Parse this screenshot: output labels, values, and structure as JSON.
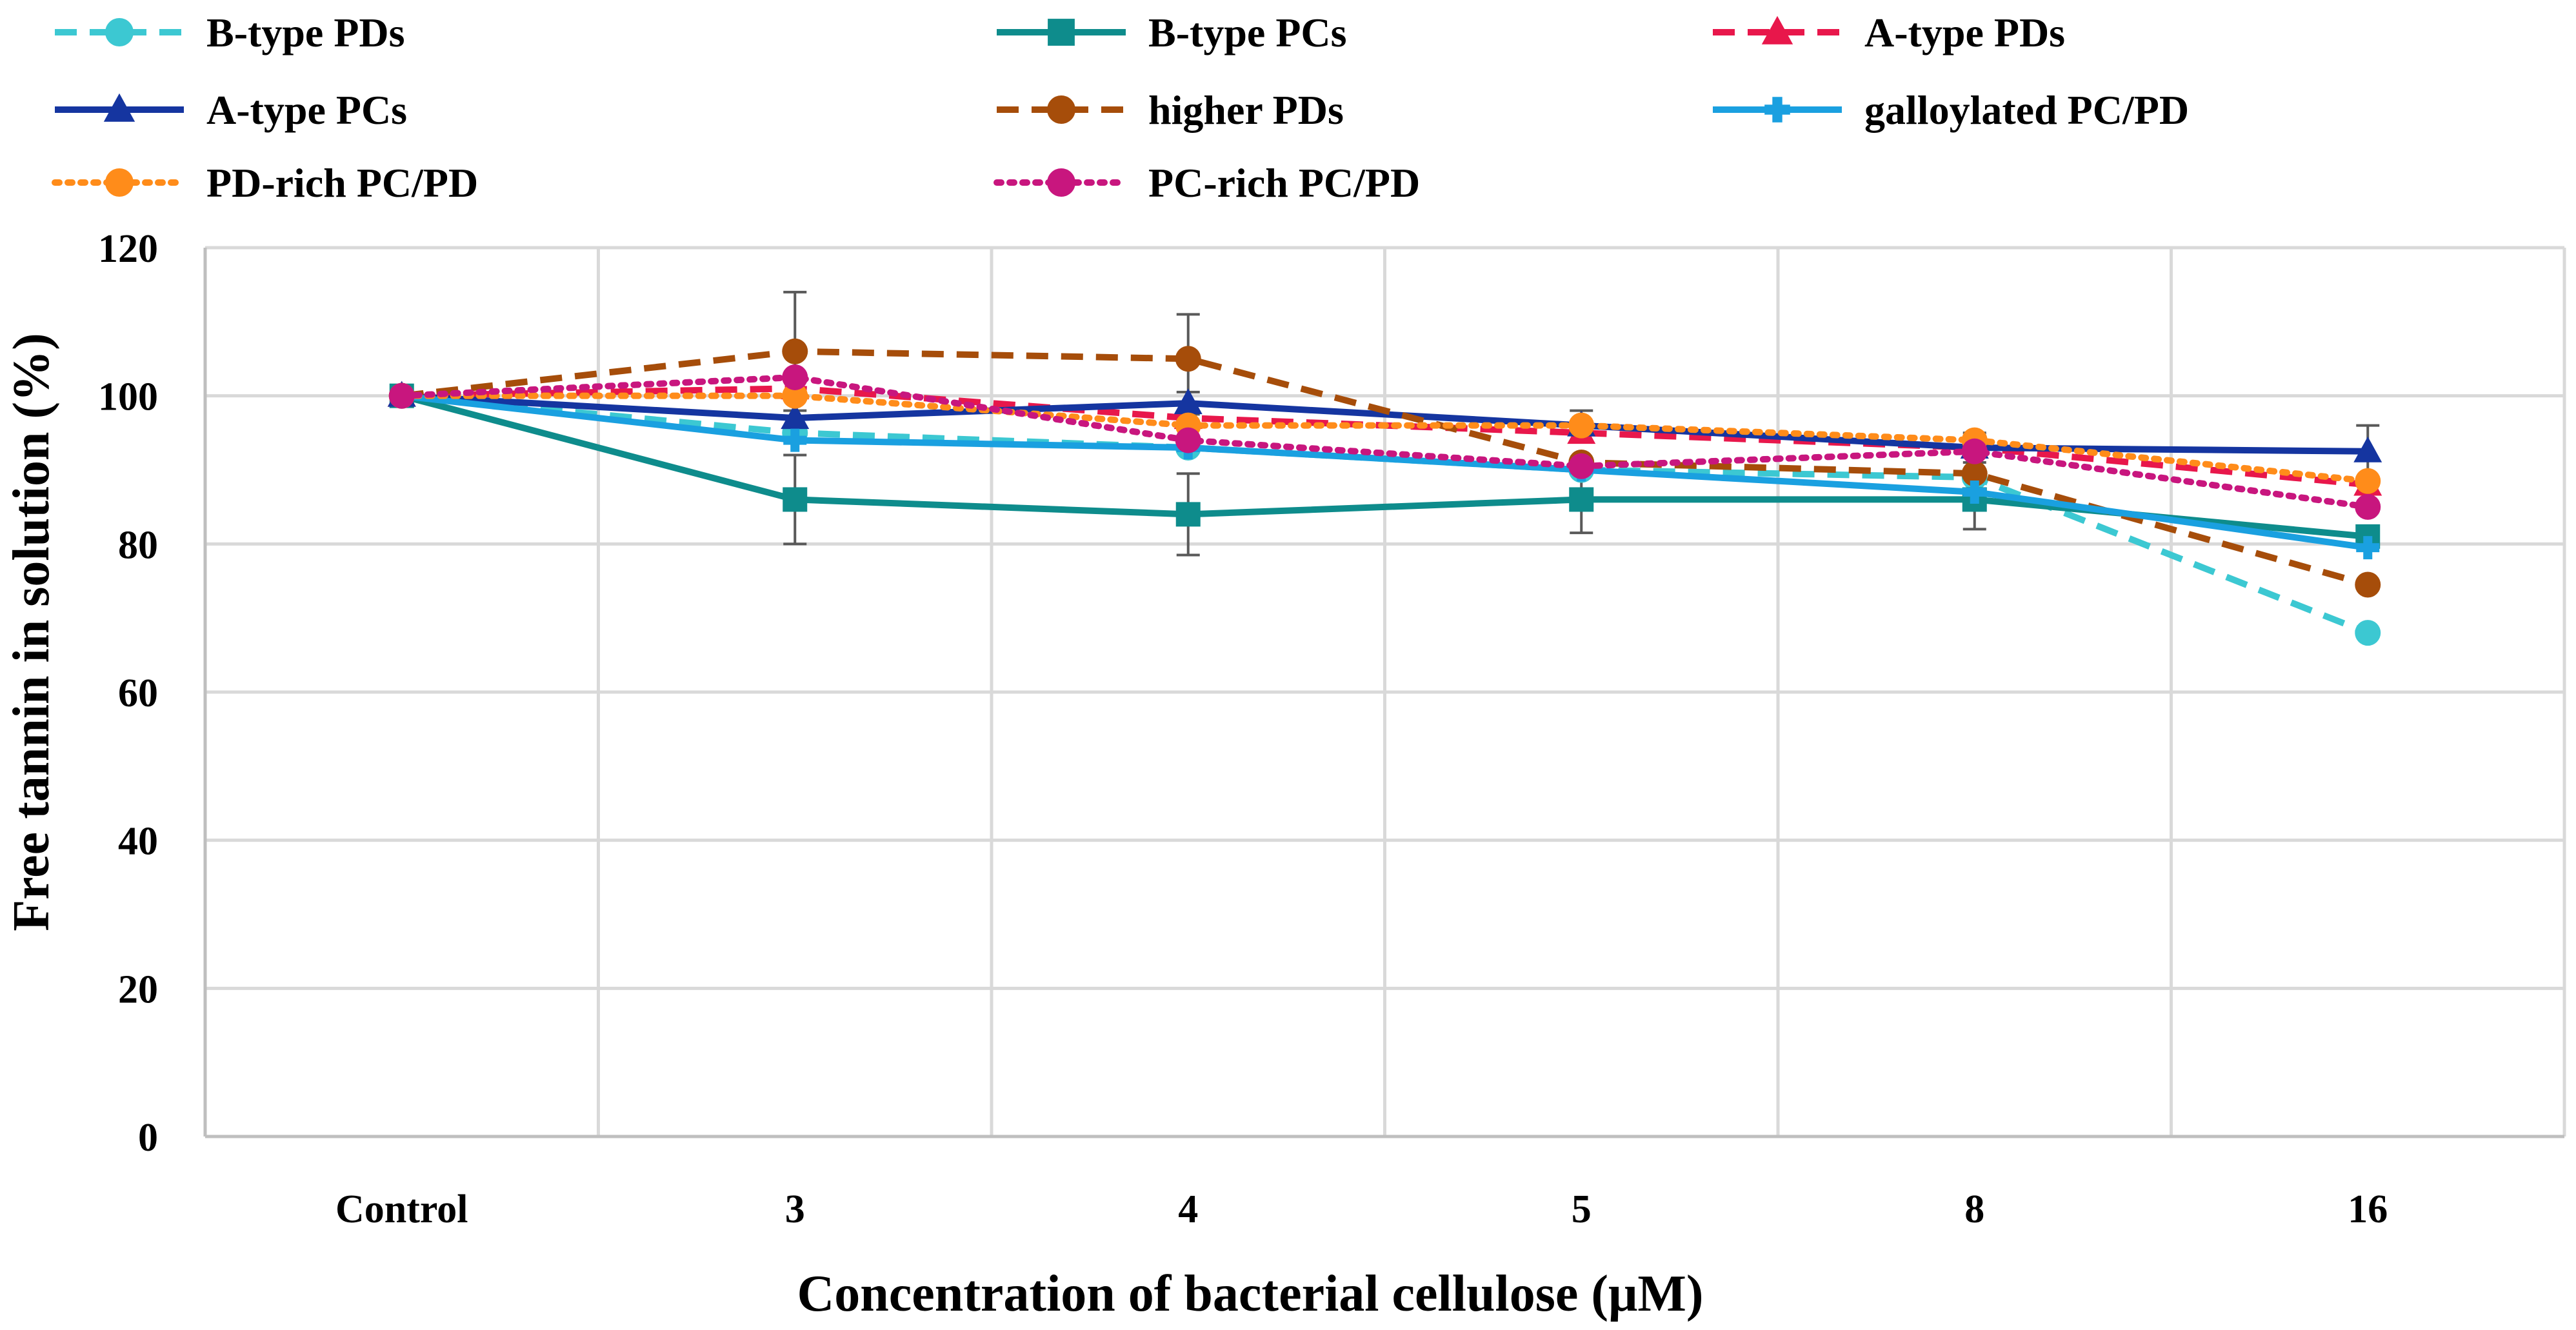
{
  "chart_data": {
    "type": "line",
    "title": "",
    "xlabel": "Concentration of bacterial cellulose (μM)",
    "ylabel": "Free tannin in solution (%)",
    "categories": [
      "Control",
      "3",
      "4",
      "5",
      "8",
      "16"
    ],
    "ylim": [
      0,
      120
    ],
    "yticks": [
      0,
      20,
      40,
      60,
      80,
      100,
      120
    ],
    "grid": true,
    "legend_position": "top",
    "series": [
      {
        "name": "B-type PDs",
        "color": "#3cc8d2",
        "dash": "dashed",
        "marker": "circle",
        "values": [
          100,
          95,
          93,
          90,
          89,
          68
        ],
        "errors": [
          0,
          0,
          0,
          0,
          0,
          0
        ]
      },
      {
        "name": "B-type PCs",
        "color": "#0e8c8c",
        "dash": "solid",
        "marker": "square",
        "values": [
          100,
          86,
          84,
          86,
          86,
          81
        ],
        "errors": [
          0,
          6,
          5.5,
          4.5,
          4,
          0
        ]
      },
      {
        "name": "A-type PDs",
        "color": "#e8174b",
        "dash": "dashed",
        "marker": "triangle",
        "values": [
          100,
          101,
          97,
          95,
          93,
          88
        ],
        "errors": [
          0,
          0,
          0,
          0,
          0,
          0
        ]
      },
      {
        "name": "A-type PCs",
        "color": "#1535a0",
        "dash": "solid",
        "marker": "triangle",
        "values": [
          100,
          97,
          99,
          96,
          93,
          92.5
        ],
        "errors": [
          0,
          0,
          1.5,
          2,
          2,
          3.5
        ]
      },
      {
        "name": "higher PDs",
        "color": "#a64d0a",
        "dash": "dashed",
        "marker": "circle",
        "values": [
          100,
          106,
          105,
          91,
          89.5,
          74.5
        ],
        "errors": [
          0,
          8,
          6,
          0,
          0,
          0
        ]
      },
      {
        "name": "galloylated PC/PD",
        "color": "#1aa0e0",
        "dash": "solid",
        "marker": "plus",
        "values": [
          100,
          94,
          93,
          90,
          87,
          79.5
        ],
        "errors": [
          0,
          0,
          0,
          0,
          0,
          0
        ]
      },
      {
        "name": "PD-rich PC/PD",
        "color": "#ff8c1a",
        "dash": "dotted",
        "marker": "circle",
        "values": [
          100,
          100,
          96,
          96,
          94,
          88.5
        ],
        "errors": [
          0,
          0,
          0,
          0,
          0,
          0
        ]
      },
      {
        "name": "PC-rich PC/PD",
        "color": "#c8167e",
        "dash": "dotted",
        "marker": "circle",
        "values": [
          100,
          102.5,
          94,
          90.5,
          92.5,
          85
        ],
        "errors": [
          0,
          0,
          0,
          0,
          0,
          0
        ]
      }
    ]
  }
}
